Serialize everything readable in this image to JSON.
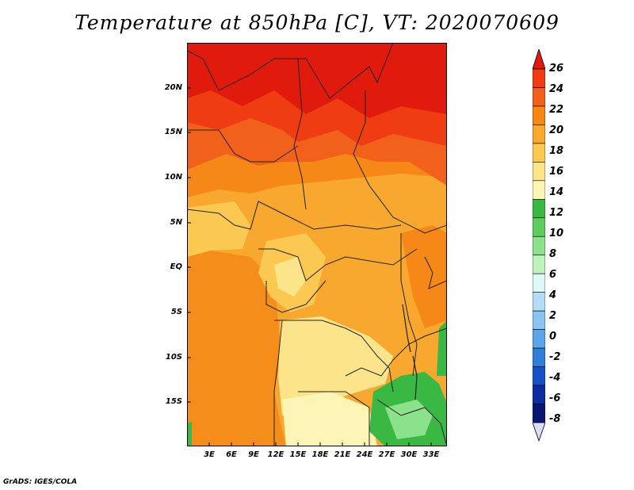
{
  "title": "Temperature at 850hPa [C], VT: 2020070609",
  "credit": "GrADS: IGES/COLA",
  "lat_labels": [
    "20N",
    "15N",
    "10N",
    "5N",
    "EQ",
    "5S",
    "10S",
    "15S"
  ],
  "lon_labels": [
    "3E",
    "6E",
    "9E",
    "12E",
    "15E",
    "18E",
    "21E",
    "24E",
    "27E",
    "30E",
    "33E"
  ],
  "colorbar": {
    "labels": [
      "26",
      "24",
      "22",
      "20",
      "18",
      "16",
      "14",
      "12",
      "10",
      "8",
      "6",
      "4",
      "2",
      "0",
      "-2",
      "-4",
      "-6",
      "-8"
    ],
    "colors": [
      "#e01a0c",
      "#ef3c13",
      "#f2611c",
      "#f58816",
      "#f9a82f",
      "#fbc852",
      "#fce48a",
      "#fdf5b6",
      "#39b843",
      "#5ecc5e",
      "#8ce28b",
      "#bff2bd",
      "#def8f7",
      "#b5dcf7",
      "#8ac4f0",
      "#5aa5e7",
      "#2f7ed8",
      "#1752c4",
      "#0a2da0",
      "#0b1670",
      "#dcdcf8"
    ]
  },
  "map_colors": {
    "hot": "#e01a0c",
    "c24": "#ef3c13",
    "c22": "#f2611c",
    "c20": "#f58816",
    "c18": "#f9a82f",
    "c16": "#fbc852",
    "c14": "#fce48a",
    "c13": "#fdf5b6",
    "green": "#39b843",
    "lightgreen": "#8ce28b",
    "border": "#222222"
  }
}
